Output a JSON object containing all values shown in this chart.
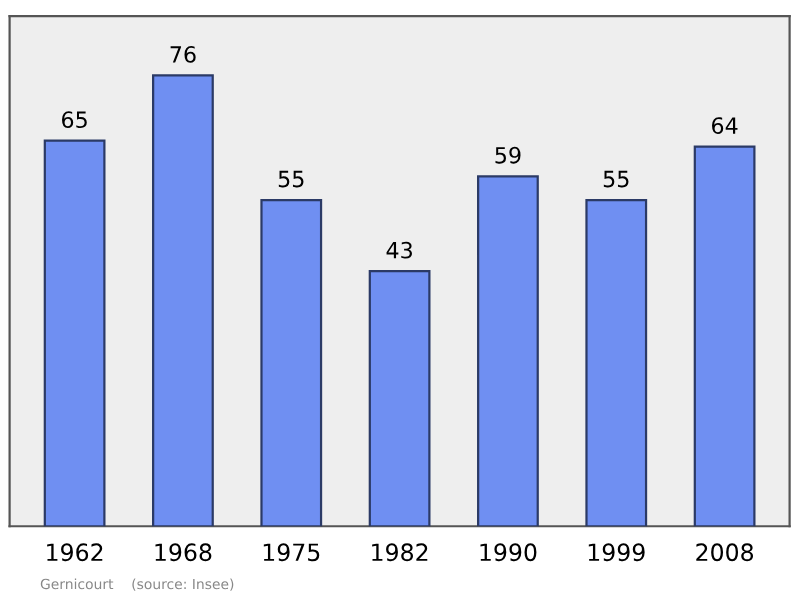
{
  "chart_data": {
    "type": "bar",
    "categories": [
      "1962",
      "1968",
      "1975",
      "1982",
      "1990",
      "1999",
      "2008"
    ],
    "values": [
      65,
      76,
      55,
      43,
      59,
      55,
      64
    ],
    "color": "#6f8ff2",
    "ylim": [
      0,
      86
    ],
    "data_labels": true,
    "grid": false,
    "annotations": [
      "Gernicourt    (source: Insee)"
    ]
  }
}
